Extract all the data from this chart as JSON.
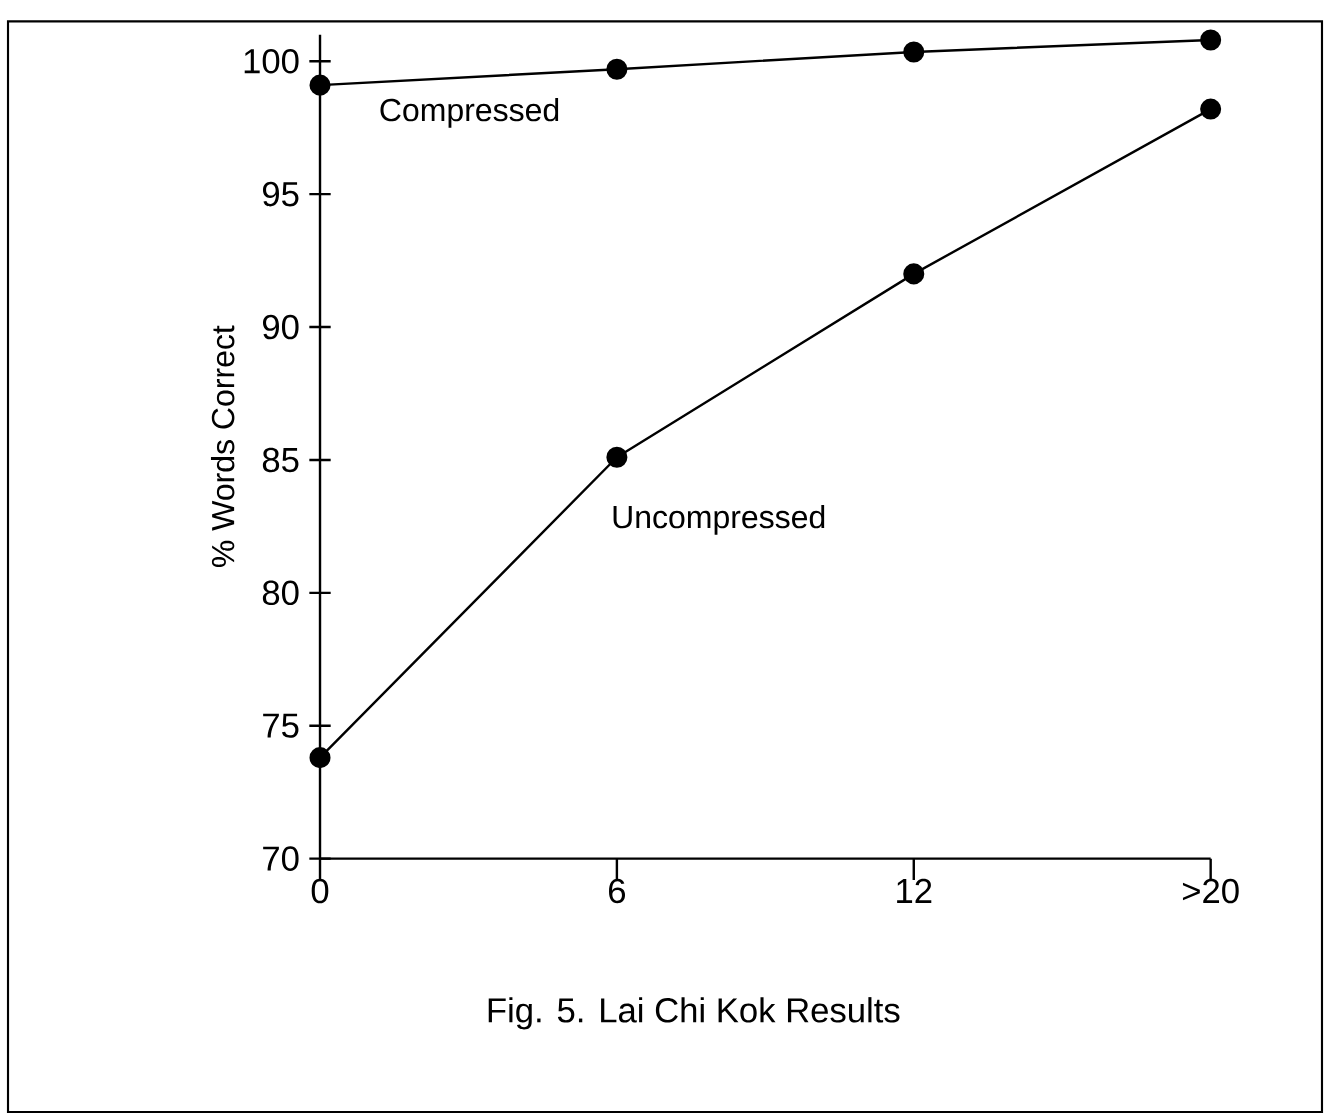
{
  "chart_data": {
    "type": "line",
    "ylabel": "% Words Correct",
    "categories": [
      "0",
      "6",
      "12",
      ">20"
    ],
    "series": [
      {
        "name": "Compressed",
        "color": "#000000",
        "values": [
          99.1,
          99.7,
          100.35,
          100.8
        ]
      },
      {
        "name": "Uncompressed",
        "color": "#000000",
        "values": [
          73.8,
          85.1,
          92.0,
          98.2
        ]
      }
    ],
    "ylim": [
      70,
      101
    ],
    "yticks": [
      70,
      75,
      80,
      85,
      90,
      95,
      100
    ],
    "marker": "circle",
    "line_style": "solid",
    "annotations": [
      "Fig. 5. Lai Chi Kok Results"
    ]
  }
}
